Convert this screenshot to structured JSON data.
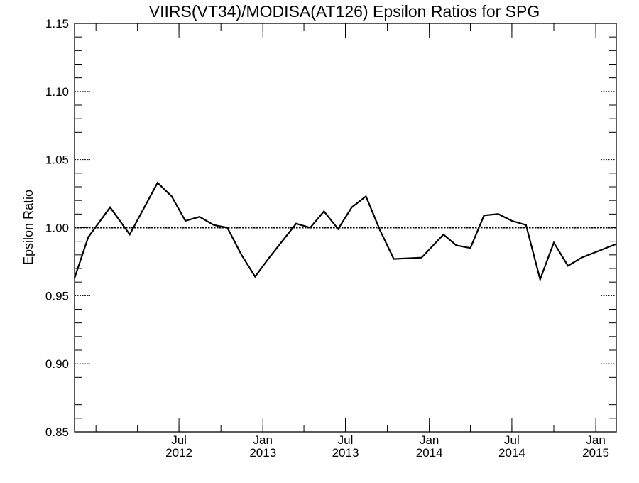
{
  "chart_data": {
    "type": "line",
    "title": "VIIRS(VT34)/MODISA(AT126)  Epsilon Ratios for SPG",
    "xlabel": "",
    "ylabel": "Epsilon Ratio",
    "ylim": [
      0.85,
      1.15
    ],
    "xlim": [
      "2011-11-15",
      "2015-02-15"
    ],
    "grid": false,
    "y_ticks": [
      0.85,
      0.9,
      0.95,
      1.0,
      1.05,
      1.1,
      1.15
    ],
    "y_tick_labels": [
      "0.85",
      "0.90",
      "0.95",
      "1.00",
      "1.05",
      "1.10",
      "1.15"
    ],
    "x_tick_labels": [
      {
        "date": "2012-07-01",
        "month": "Jul",
        "year": "2012"
      },
      {
        "date": "2013-01-01",
        "month": "Jan",
        "year": "2013"
      },
      {
        "date": "2013-07-01",
        "month": "Jul",
        "year": "2013"
      },
      {
        "date": "2014-01-01",
        "month": "Jan",
        "year": "2014"
      },
      {
        "date": "2014-07-01",
        "month": "Jul",
        "year": "2014"
      },
      {
        "date": "2015-01-01",
        "month": "Jan",
        "year": "2015"
      }
    ],
    "reference_line": {
      "y": 1.0,
      "style": "dotted"
    },
    "series": [
      {
        "color": "#000000",
        "x": [
          "2011-11-15",
          "2011-12-15",
          "2012-02-01",
          "2012-03-15",
          "2012-05-15",
          "2012-06-15",
          "2012-07-15",
          "2012-08-15",
          "2012-09-15",
          "2012-10-15",
          "2012-11-15",
          "2012-12-15",
          "2013-01-15",
          "2013-03-15",
          "2013-04-15",
          "2013-05-15",
          "2013-06-15",
          "2013-07-15",
          "2013-08-15",
          "2013-09-15",
          "2013-10-15",
          "2013-12-15",
          "2014-02-01",
          "2014-03-01",
          "2014-04-01",
          "2014-05-01",
          "2014-06-01",
          "2014-07-01",
          "2014-08-01",
          "2014-09-01",
          "2014-10-01",
          "2014-11-01",
          "2014-12-01",
          "2015-02-15"
        ],
        "values": [
          0.963,
          0.993,
          1.015,
          0.995,
          1.033,
          1.023,
          1.005,
          1.008,
          1.002,
          1.0,
          0.98,
          0.964,
          0.978,
          1.003,
          1.0,
          1.012,
          0.999,
          1.015,
          1.023,
          0.998,
          0.977,
          0.978,
          0.995,
          0.987,
          0.985,
          1.009,
          1.01,
          1.005,
          1.002,
          0.962,
          0.989,
          0.972,
          0.978,
          0.988
        ]
      }
    ]
  }
}
